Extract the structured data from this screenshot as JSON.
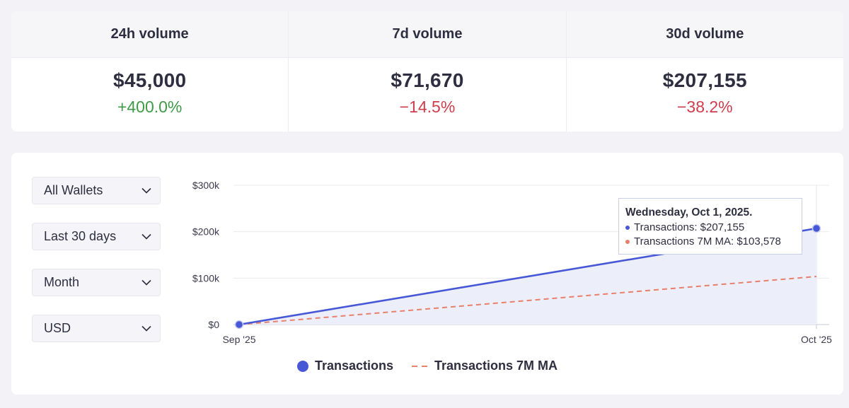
{
  "stats": [
    {
      "label": "24h volume",
      "value": "$45,000",
      "change": "+400.0%",
      "direction": "up"
    },
    {
      "label": "7d volume",
      "value": "$71,670",
      "change": "−14.5%",
      "direction": "down"
    },
    {
      "label": "30d volume",
      "value": "$207,155",
      "change": "−38.2%",
      "direction": "down"
    }
  ],
  "filters": {
    "wallet": "All Wallets",
    "range": "Last 30 days",
    "interval": "Month",
    "currency": "USD"
  },
  "tooltip": {
    "title": "Wednesday, Oct 1, 2025.",
    "rows": [
      {
        "text": "Transactions: $207,155"
      },
      {
        "text": "Transactions 7M MA: $103,578"
      }
    ]
  },
  "legend": {
    "transactions": "Transactions",
    "ma": "Transactions 7M MA"
  },
  "colors": {
    "transactions": "#4658d6",
    "ma": "#e8806c",
    "area": "#eceef9",
    "up": "#3f9a48",
    "down": "#cf3d4c"
  },
  "chart_data": {
    "type": "area",
    "categories": [
      "Sep '25",
      "Oct '25"
    ],
    "series": [
      {
        "name": "Transactions",
        "values": [
          0,
          207155
        ]
      },
      {
        "name": "Transactions 7M MA",
        "values": [
          0,
          103578
        ]
      }
    ],
    "y_ticks": [
      "$0",
      "$100k",
      "$200k",
      "$300k"
    ],
    "y_tick_values": [
      0,
      100000,
      200000,
      300000
    ],
    "ylim": [
      0,
      300000
    ],
    "grid": true,
    "legend_position": "bottom"
  }
}
